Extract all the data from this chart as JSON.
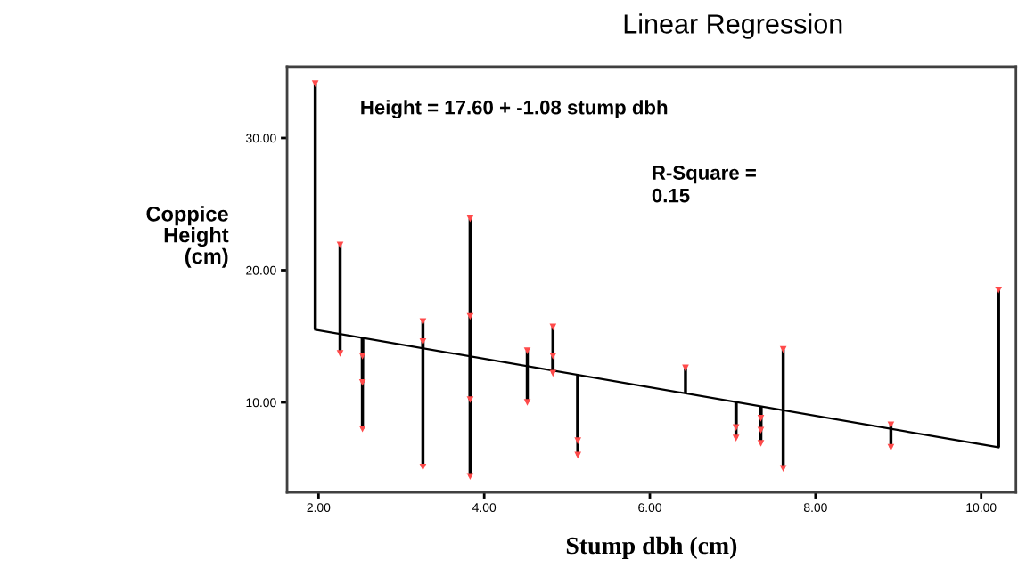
{
  "chart_data": {
    "type": "scatter",
    "title": "Linear Regression",
    "xlabel": "Stump dbh (cm)",
    "ylabel": "Coppice\nHeight\n(cm)",
    "annotations": [
      "Height = 17.60 + -1.08 stump dbh",
      "R-Square =\n0.15"
    ],
    "xlim": [
      1.62,
      10.42
    ],
    "ylim": [
      3.2,
      35.4
    ],
    "xticks": [
      {
        "value": 2,
        "label": "2.00"
      },
      {
        "value": 4,
        "label": "4.00"
      },
      {
        "value": 6,
        "label": "6.00"
      },
      {
        "value": 8,
        "label": "8.00"
      },
      {
        "value": 10,
        "label": "10.00"
      }
    ],
    "yticks": [
      {
        "value": 10,
        "label": "10.00"
      },
      {
        "value": 20,
        "label": "20.00"
      },
      {
        "value": 30,
        "label": "30.00"
      }
    ],
    "grid": false,
    "legend": false,
    "series": [
      {
        "color": "#ff4a4a",
        "marker": "triangle",
        "x": [
          1.96,
          2.26,
          2.26,
          2.53,
          2.53,
          2.53,
          3.26,
          3.26,
          3.26,
          3.83,
          3.83,
          3.83,
          3.83,
          4.52,
          4.52,
          4.83,
          4.83,
          4.83,
          5.13,
          5.13,
          6.43,
          7.04,
          7.04,
          7.34,
          7.34,
          7.34,
          7.61,
          7.61,
          8.91,
          8.91,
          10.21
        ],
        "values": [
          34.1,
          21.9,
          13.7,
          13.5,
          11.5,
          8.0,
          16.1,
          14.6,
          5.1,
          23.9,
          16.5,
          10.2,
          4.4,
          13.9,
          10.0,
          15.7,
          13.5,
          12.2,
          7.1,
          6.0,
          12.6,
          8.1,
          7.3,
          8.8,
          7.9,
          6.9,
          14.0,
          5.0,
          8.3,
          6.6,
          18.5
        ],
        "errors": [
          [
            15.5,
            34.1
          ],
          [
            15.2,
            21.9
          ],
          [
            13.7,
            15.2
          ],
          [
            13.5,
            14.9
          ],
          [
            11.5,
            14.9
          ],
          [
            8.0,
            14.9
          ],
          [
            14.1,
            16.1
          ],
          [
            14.1,
            14.6
          ],
          [
            5.1,
            14.1
          ],
          [
            13.5,
            23.9
          ],
          [
            13.5,
            16.5
          ],
          [
            10.2,
            13.5
          ],
          [
            4.4,
            13.5
          ],
          [
            12.7,
            13.9
          ],
          [
            10.0,
            12.7
          ],
          [
            12.4,
            15.7
          ],
          [
            12.4,
            13.5
          ],
          [
            12.2,
            12.4
          ],
          [
            7.1,
            12.1
          ],
          [
            6.0,
            12.1
          ],
          [
            10.7,
            12.6
          ],
          [
            8.1,
            10.0
          ],
          [
            7.3,
            10.0
          ],
          [
            8.8,
            9.7
          ],
          [
            7.9,
            9.7
          ],
          [
            6.9,
            9.7
          ],
          [
            9.4,
            14.0
          ],
          [
            5.0,
            9.4
          ],
          [
            8.0,
            8.3
          ],
          [
            6.6,
            8.0
          ],
          [
            6.6,
            18.5
          ]
        ]
      },
      {
        "type": "line",
        "color": "#000000",
        "marker": "none",
        "line_style": "solid",
        "x": [
          1.96,
          10.21
        ],
        "values": [
          15.5,
          6.6
        ]
      }
    ]
  }
}
